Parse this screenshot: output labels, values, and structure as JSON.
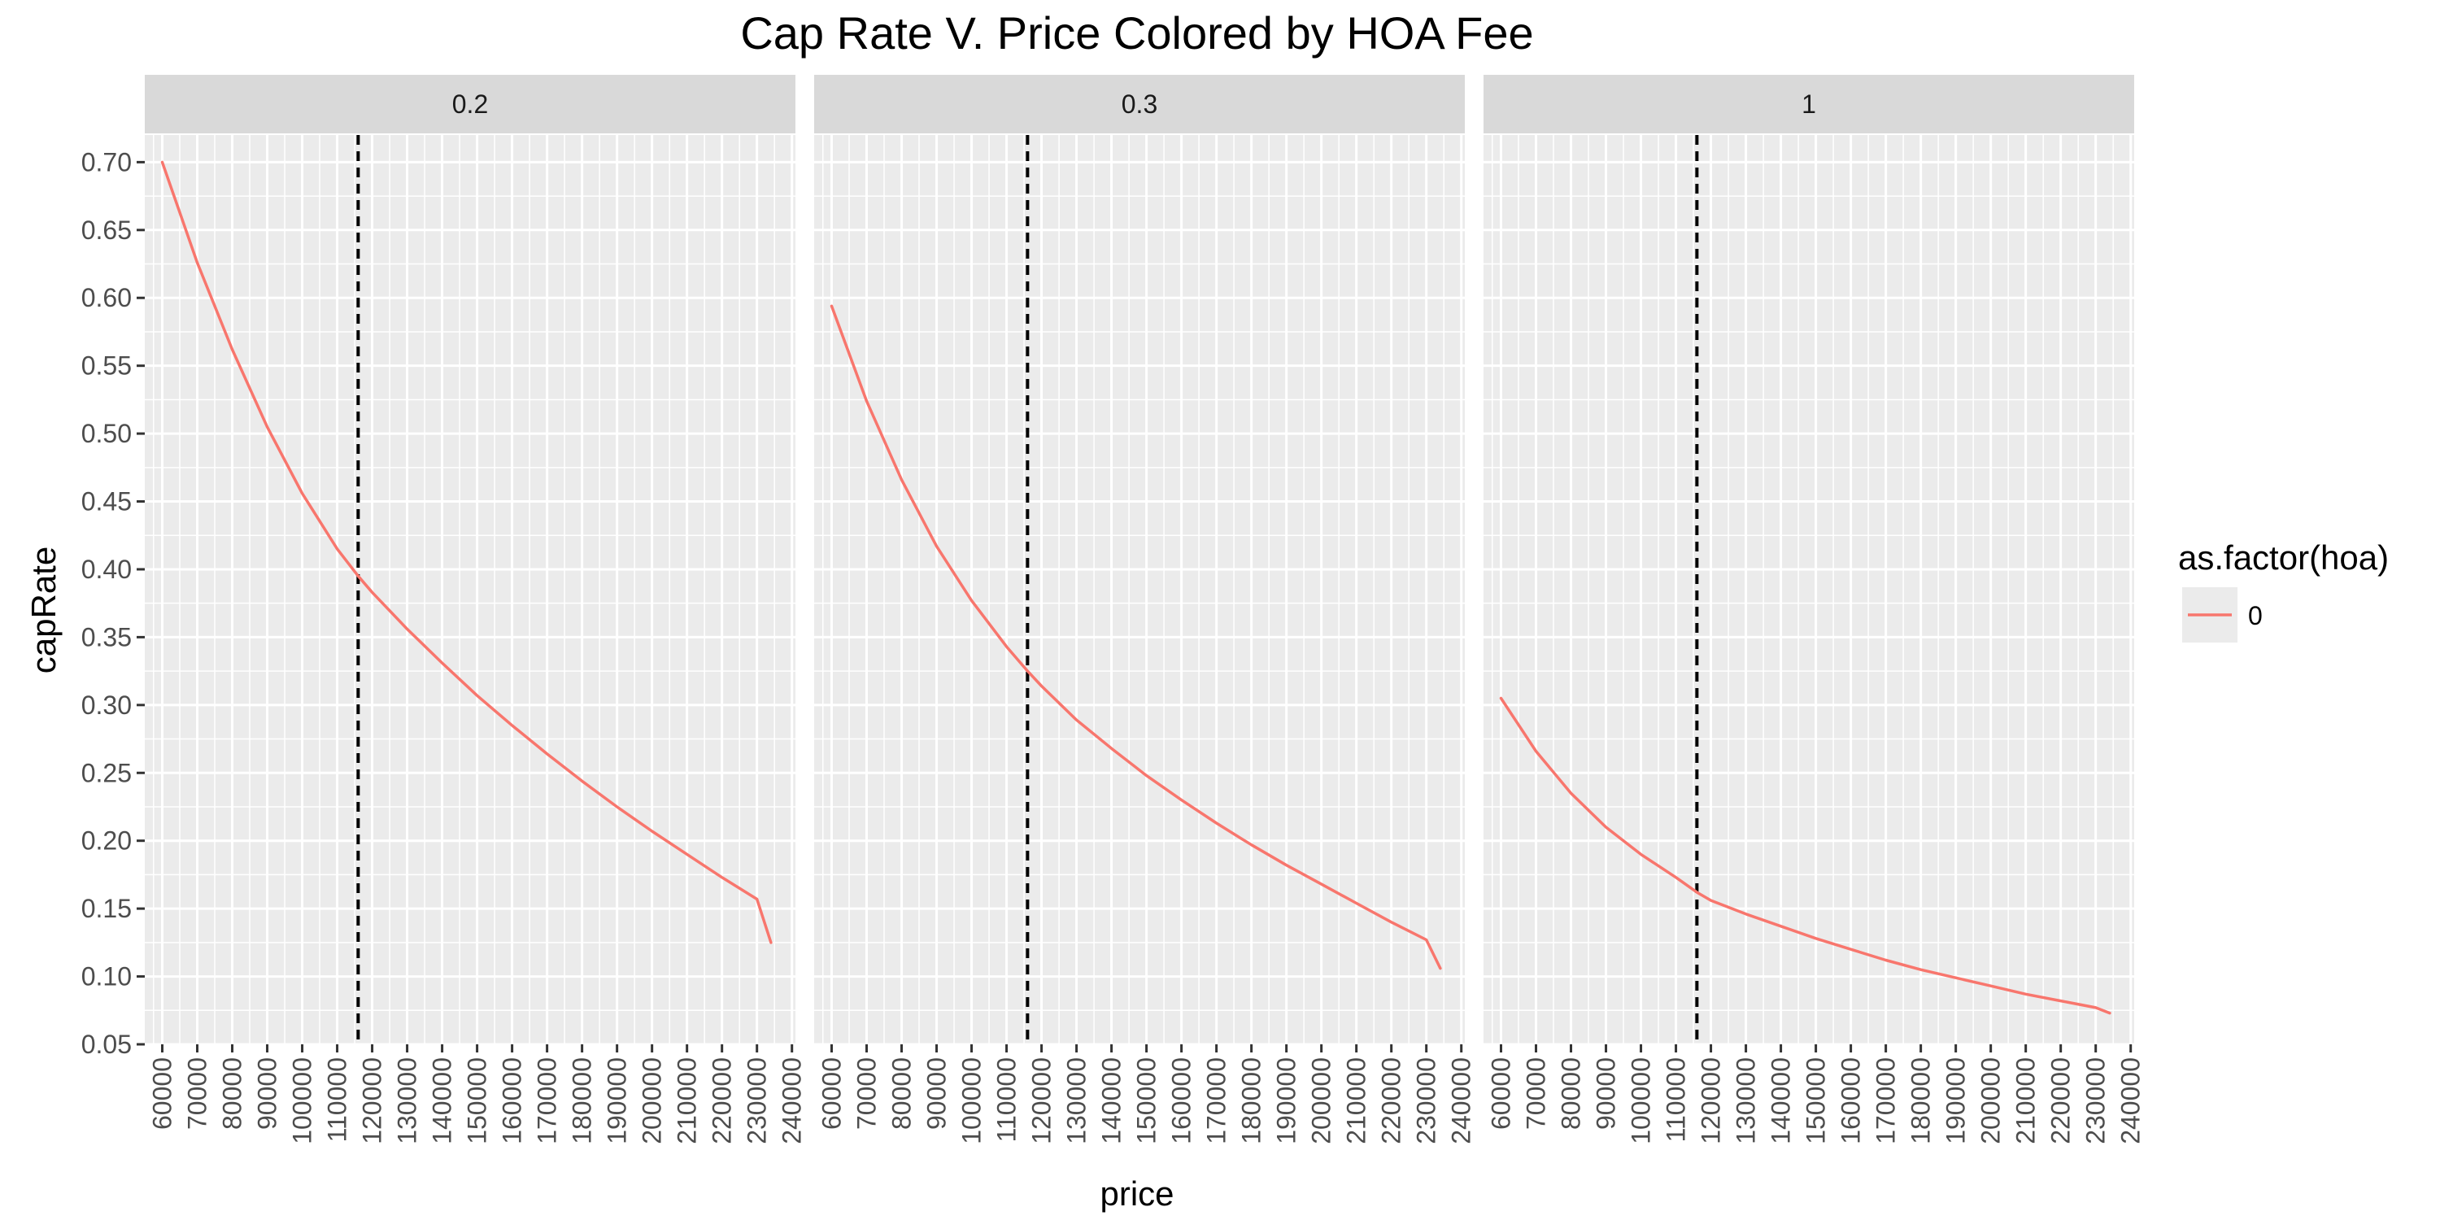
{
  "chart_data": {
    "type": "line",
    "title": "Cap Rate V. Price Colored by HOA Fee",
    "xlabel": "price",
    "ylabel": "capRate",
    "facet_labels": [
      "0.2",
      "0.3",
      "1"
    ],
    "x_ticks": [
      60000,
      70000,
      80000,
      90000,
      100000,
      110000,
      120000,
      130000,
      140000,
      150000,
      160000,
      170000,
      180000,
      190000,
      200000,
      210000,
      220000,
      230000,
      240000
    ],
    "y_ticks": [
      "0.05",
      "0.10",
      "0.15",
      "0.20",
      "0.25",
      "0.30",
      "0.35",
      "0.40",
      "0.45",
      "0.50",
      "0.55",
      "0.60",
      "0.65",
      "0.70"
    ],
    "xlim": [
      55000,
      241000
    ],
    "ylim": [
      0.05,
      0.72
    ],
    "vline_x": 116000,
    "legend": {
      "title": "as.factor(hoa)",
      "entries": [
        "0"
      ],
      "position": "right"
    },
    "grid": true,
    "series_color": "#F8766D",
    "panels": [
      {
        "label": "0.2",
        "x": [
          60000,
          70000,
          80000,
          90000,
          100000,
          110000,
          116000,
          120000,
          130000,
          140000,
          150000,
          160000,
          170000,
          180000,
          190000,
          200000,
          210000,
          220000,
          230000,
          234000
        ],
        "y": [
          0.7,
          0.626,
          0.562,
          0.505,
          0.456,
          0.415,
          0.395,
          0.383,
          0.356,
          0.331,
          0.307,
          0.285,
          0.264,
          0.244,
          0.225,
          0.207,
          0.19,
          0.173,
          0.157,
          0.125
        ]
      },
      {
        "label": "0.3",
        "x": [
          60000,
          70000,
          80000,
          90000,
          100000,
          110000,
          116000,
          120000,
          130000,
          140000,
          150000,
          160000,
          170000,
          180000,
          190000,
          200000,
          210000,
          220000,
          230000,
          234000
        ],
        "y": [
          0.594,
          0.524,
          0.466,
          0.417,
          0.377,
          0.343,
          0.325,
          0.314,
          0.289,
          0.268,
          0.248,
          0.23,
          0.213,
          0.197,
          0.182,
          0.168,
          0.154,
          0.14,
          0.127,
          0.106
        ]
      },
      {
        "label": "1",
        "x": [
          60000,
          70000,
          80000,
          90000,
          100000,
          110000,
          116000,
          120000,
          130000,
          140000,
          150000,
          160000,
          170000,
          180000,
          190000,
          200000,
          210000,
          220000,
          230000,
          234000
        ],
        "y": [
          0.305,
          0.266,
          0.235,
          0.21,
          0.19,
          0.173,
          0.162,
          0.156,
          0.146,
          0.137,
          0.128,
          0.12,
          0.112,
          0.105,
          0.099,
          0.093,
          0.087,
          0.082,
          0.077,
          0.073
        ]
      }
    ]
  }
}
